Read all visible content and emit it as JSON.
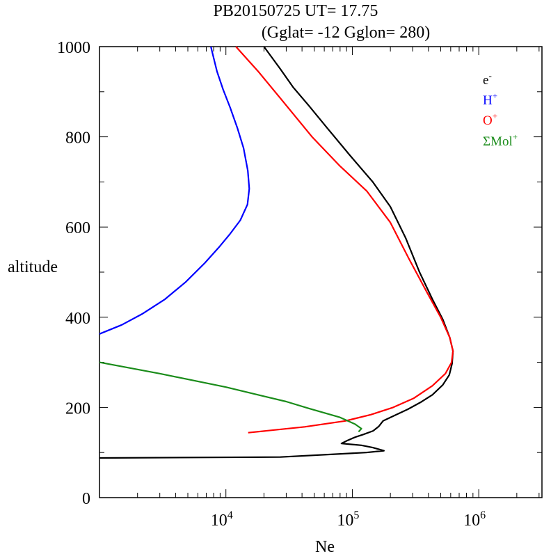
{
  "chart_data": {
    "type": "line",
    "title": "PB20150725   UT=  17.75",
    "subtitle": "(Gglat= -12   Gglon=  280)",
    "xlabel": "Ne",
    "ylabel": "altitude",
    "x_scale": "log",
    "xlim": [
      1000,
      3162278
    ],
    "ylim": [
      0,
      1000
    ],
    "x_ticks": [
      {
        "value": 10000,
        "base": "10",
        "exp": "4"
      },
      {
        "value": 100000,
        "base": "10",
        "exp": "5"
      },
      {
        "value": 1000000,
        "base": "10",
        "exp": "6"
      }
    ],
    "y_ticks": [
      {
        "value": 0,
        "label": "0"
      },
      {
        "value": 200,
        "label": "200"
      },
      {
        "value": 400,
        "label": "400"
      },
      {
        "value": 600,
        "label": "600"
      },
      {
        "value": 800,
        "label": "800"
      },
      {
        "value": 1000,
        "label": "1000"
      }
    ],
    "legend_position": "top-right",
    "grid": false,
    "series": [
      {
        "name": "e-",
        "label_base": "e",
        "label_sup": "-",
        "color": "#000000",
        "points": [
          [
            1000,
            88
          ],
          [
            27000,
            90
          ],
          [
            129000,
            100
          ],
          [
            178000,
            104
          ],
          [
            145000,
            111
          ],
          [
            118000,
            116
          ],
          [
            82000,
            120
          ],
          [
            92000,
            127
          ],
          [
            105000,
            134
          ],
          [
            122000,
            140
          ],
          [
            146000,
            148
          ],
          [
            162000,
            158
          ],
          [
            175000,
            170
          ],
          [
            215000,
            182
          ],
          [
            275000,
            196
          ],
          [
            350000,
            212
          ],
          [
            430000,
            228
          ],
          [
            520000,
            250
          ],
          [
            585000,
            272
          ],
          [
            615000,
            297
          ],
          [
            625000,
            325
          ],
          [
            590000,
            355
          ],
          [
            520000,
            395
          ],
          [
            430000,
            440
          ],
          [
            340000,
            500
          ],
          [
            265000,
            575
          ],
          [
            200000,
            645
          ],
          [
            145000,
            700
          ],
          [
            95000,
            760
          ],
          [
            63000,
            820
          ],
          [
            45000,
            870
          ],
          [
            34000,
            910
          ],
          [
            27000,
            950
          ],
          [
            20000,
            1000
          ]
        ]
      },
      {
        "name": "H+",
        "label_base": "H",
        "label_sup": "+",
        "color": "#0000ff",
        "points": [
          [
            1000,
            363
          ],
          [
            1500,
            383
          ],
          [
            2200,
            408
          ],
          [
            3300,
            440
          ],
          [
            4800,
            478
          ],
          [
            6800,
            520
          ],
          [
            8800,
            555
          ],
          [
            10800,
            585
          ],
          [
            13000,
            615
          ],
          [
            14800,
            650
          ],
          [
            15300,
            685
          ],
          [
            14900,
            725
          ],
          [
            13800,
            775
          ],
          [
            12300,
            820
          ],
          [
            10800,
            865
          ],
          [
            9500,
            905
          ],
          [
            8500,
            945
          ],
          [
            7600,
            1000
          ]
        ]
      },
      {
        "name": "O+",
        "label_base": "O",
        "label_sup": "+",
        "color": "#ff0000",
        "points": [
          [
            15000,
            144
          ],
          [
            42000,
            157
          ],
          [
            88000,
            170
          ],
          [
            140000,
            184
          ],
          [
            210000,
            200
          ],
          [
            305000,
            220
          ],
          [
            430000,
            248
          ],
          [
            545000,
            275
          ],
          [
            610000,
            300
          ],
          [
            625000,
            325
          ],
          [
            590000,
            355
          ],
          [
            500000,
            400
          ],
          [
            390000,
            455
          ],
          [
            280000,
            530
          ],
          [
            200000,
            610
          ],
          [
            130000,
            680
          ],
          [
            80000,
            735
          ],
          [
            48000,
            800
          ],
          [
            28000,
            880
          ],
          [
            18000,
            945
          ],
          [
            12000,
            1000
          ]
        ]
      },
      {
        "name": "ΣMol+",
        "label_base": "ΣMol",
        "label_sup": "+",
        "color": "#1a8c1a",
        "points": [
          [
            1000,
            300
          ],
          [
            3000,
            275
          ],
          [
            10000,
            245
          ],
          [
            30000,
            213
          ],
          [
            45000,
            198
          ],
          [
            80000,
            178
          ],
          [
            105000,
            163
          ],
          [
            118000,
            153
          ],
          [
            112000,
            146
          ]
        ]
      }
    ]
  }
}
